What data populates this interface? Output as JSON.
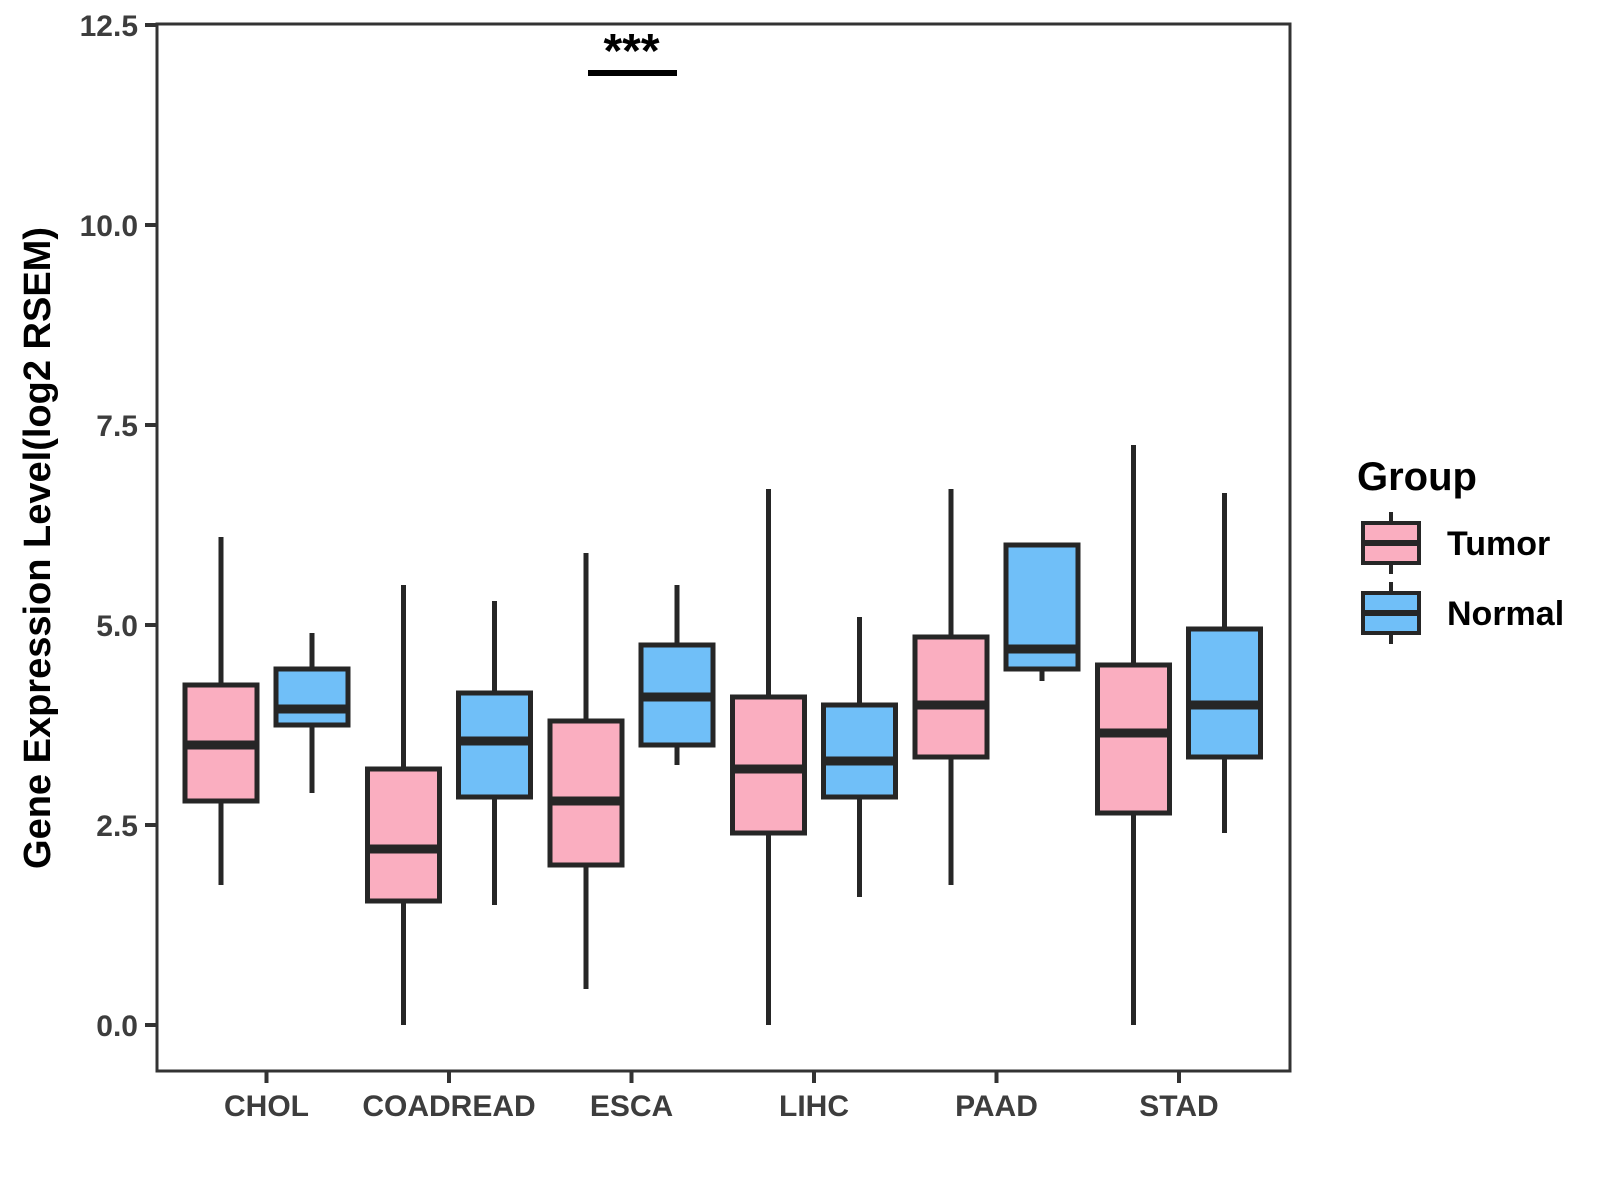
{
  "figure": {
    "background": "#ffffff"
  },
  "colors": {
    "box_border": "#262626",
    "median_line": "#262626",
    "panel_border": "#333333",
    "tick_mark": "#333333",
    "axis_tick_text": "#3d3d3d",
    "axis_title_text": "#000000",
    "significance_color": "#000000",
    "tumor_fill": "#FAAEC0",
    "normal_fill": "#70BFF8"
  },
  "chart_data": {
    "type": "boxplot",
    "title": "",
    "xlabel": "",
    "ylabel": "Gene Expression Level(log2 RSEM)",
    "ylim": [
      -0.6,
      12.5
    ],
    "grid": false,
    "yticks": [
      {
        "value": 0.0,
        "label": "0.0"
      },
      {
        "value": 2.5,
        "label": "2.5"
      },
      {
        "value": 5.0,
        "label": "5.0"
      },
      {
        "value": 7.5,
        "label": "7.5"
      },
      {
        "value": 10.0,
        "label": "10.0"
      },
      {
        "value": 12.5,
        "label": "12.5"
      }
    ],
    "categories": [
      "CHOL",
      "COADREAD",
      "ESCA",
      "LIHC",
      "PAAD",
      "STAD"
    ],
    "groups": [
      {
        "name": "Tumor",
        "fill": "#FAAEC0"
      },
      {
        "name": "Normal",
        "fill": "#70BFF8"
      }
    ],
    "boxes": [
      {
        "category": "CHOL",
        "group": "Tumor",
        "whisker_low": 1.75,
        "q1": 2.8,
        "median": 3.5,
        "q3": 4.25,
        "whisker_high": 6.1,
        "outliers": []
      },
      {
        "category": "CHOL",
        "group": "Normal",
        "whisker_low": 2.9,
        "q1": 3.75,
        "median": 3.95,
        "q3": 4.45,
        "whisker_high": 4.9,
        "outliers": []
      },
      {
        "category": "COADREAD",
        "group": "Tumor",
        "whisker_low": 0.0,
        "q1": 1.55,
        "median": 2.2,
        "q3": 3.2,
        "whisker_high": 5.5,
        "outliers": []
      },
      {
        "category": "COADREAD",
        "group": "Normal",
        "whisker_low": 1.5,
        "q1": 2.85,
        "median": 3.55,
        "q3": 4.15,
        "whisker_high": 5.3,
        "outliers": []
      },
      {
        "category": "ESCA",
        "group": "Tumor",
        "whisker_low": 0.45,
        "q1": 2.0,
        "median": 2.8,
        "q3": 3.8,
        "whisker_high": 5.9,
        "outliers": []
      },
      {
        "category": "ESCA",
        "group": "Normal",
        "whisker_low": 3.25,
        "q1": 3.5,
        "median": 4.1,
        "q3": 4.75,
        "whisker_high": 5.5,
        "outliers": []
      },
      {
        "category": "LIHC",
        "group": "Tumor",
        "whisker_low": 0.0,
        "q1": 2.4,
        "median": 3.2,
        "q3": 4.1,
        "whisker_high": 6.7,
        "outliers": []
      },
      {
        "category": "LIHC",
        "group": "Normal",
        "whisker_low": 1.6,
        "q1": 2.85,
        "median": 3.3,
        "q3": 4.0,
        "whisker_high": 5.1,
        "outliers": []
      },
      {
        "category": "PAAD",
        "group": "Tumor",
        "whisker_low": 1.75,
        "q1": 3.35,
        "median": 4.0,
        "q3": 4.85,
        "whisker_high": 6.7,
        "outliers": []
      },
      {
        "category": "PAAD",
        "group": "Normal",
        "whisker_low": 4.3,
        "q1": 4.45,
        "median": 4.7,
        "q3": 6.0,
        "whisker_high": 6.0,
        "outliers": []
      },
      {
        "category": "STAD",
        "group": "Tumor",
        "whisker_low": 0.0,
        "q1": 2.65,
        "median": 3.65,
        "q3": 4.5,
        "whisker_high": 7.25,
        "outliers": []
      },
      {
        "category": "STAD",
        "group": "Normal",
        "whisker_low": 2.4,
        "q1": 3.35,
        "median": 4.0,
        "q3": 4.95,
        "whisker_high": 6.65,
        "outliers": []
      }
    ],
    "significance": {
      "label": "***",
      "category": "ESCA",
      "between": [
        "Tumor",
        "Normal"
      ],
      "bar_y_value": 11.9
    },
    "legend": {
      "title": "Group",
      "position": "right",
      "entries": [
        "Tumor",
        "Normal"
      ]
    }
  }
}
